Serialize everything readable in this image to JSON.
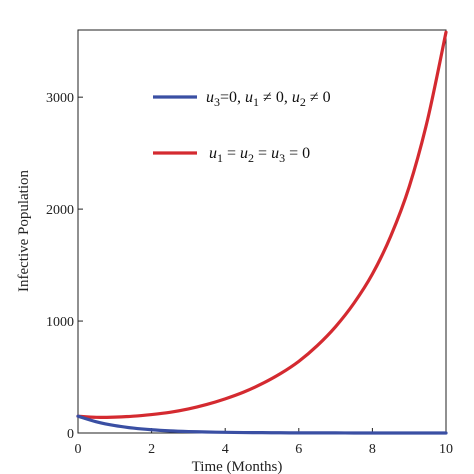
{
  "chart_data": {
    "type": "line",
    "title": "",
    "xlabel": "Time (Months)",
    "ylabel": "Infective Population",
    "xlim": [
      0,
      10
    ],
    "ylim": [
      0,
      3600
    ],
    "xticks": [
      0,
      2,
      4,
      6,
      8,
      10
    ],
    "yticks": [
      0,
      1000,
      2000,
      3000
    ],
    "x_tick_labels": [
      "0",
      "2",
      "4",
      "6",
      "8",
      "10"
    ],
    "y_tick_labels": [
      "0",
      "1000",
      "2000",
      "3000"
    ],
    "grid": false,
    "legend_position": "upper-middle",
    "series": [
      {
        "legend_parts": [
          {
            "t": "u",
            "i": true
          },
          {
            "t": "3",
            "sub": true
          },
          {
            "t": "=0, "
          },
          {
            "t": "u",
            "i": true
          },
          {
            "t": "1",
            "sub": true
          },
          {
            "t": " ≠ 0, "
          },
          {
            "t": "u",
            "i": true
          },
          {
            "t": "2",
            "sub": true
          },
          {
            "t": " ≠ 0"
          }
        ],
        "color": "#3a4fa3",
        "x": [
          0,
          0.5,
          1,
          1.5,
          2,
          2.5,
          3,
          3.5,
          4,
          4.5,
          5,
          5.5,
          6,
          6.5,
          7,
          7.5,
          8,
          8.5,
          9,
          9.5,
          10
        ],
        "y": [
          150,
          100,
          66,
          44,
          29,
          19,
          13,
          9,
          6,
          4,
          3,
          2,
          1,
          1,
          1,
          0,
          0,
          0,
          0,
          0,
          0
        ]
      },
      {
        "legend_parts": [
          {
            "t": "u",
            "i": true
          },
          {
            "t": "1",
            "sub": true
          },
          {
            "t": " = "
          },
          {
            "t": "u",
            "i": true
          },
          {
            "t": "2",
            "sub": true
          },
          {
            "t": " = "
          },
          {
            "t": "u",
            "i": true
          },
          {
            "t": "3",
            "sub": true
          },
          {
            "t": " = 0"
          }
        ],
        "color": "#d42a30",
        "x": [
          0,
          0.5,
          1,
          1.5,
          2,
          2.5,
          3,
          3.5,
          4,
          4.5,
          5,
          5.5,
          6,
          6.5,
          7,
          7.5,
          8,
          8.5,
          9,
          9.5,
          10
        ],
        "y": [
          150,
          140,
          142,
          150,
          165,
          185,
          215,
          255,
          305,
          365,
          440,
          530,
          640,
          780,
          950,
          1160,
          1420,
          1760,
          2200,
          2800,
          3580
        ]
      }
    ]
  }
}
